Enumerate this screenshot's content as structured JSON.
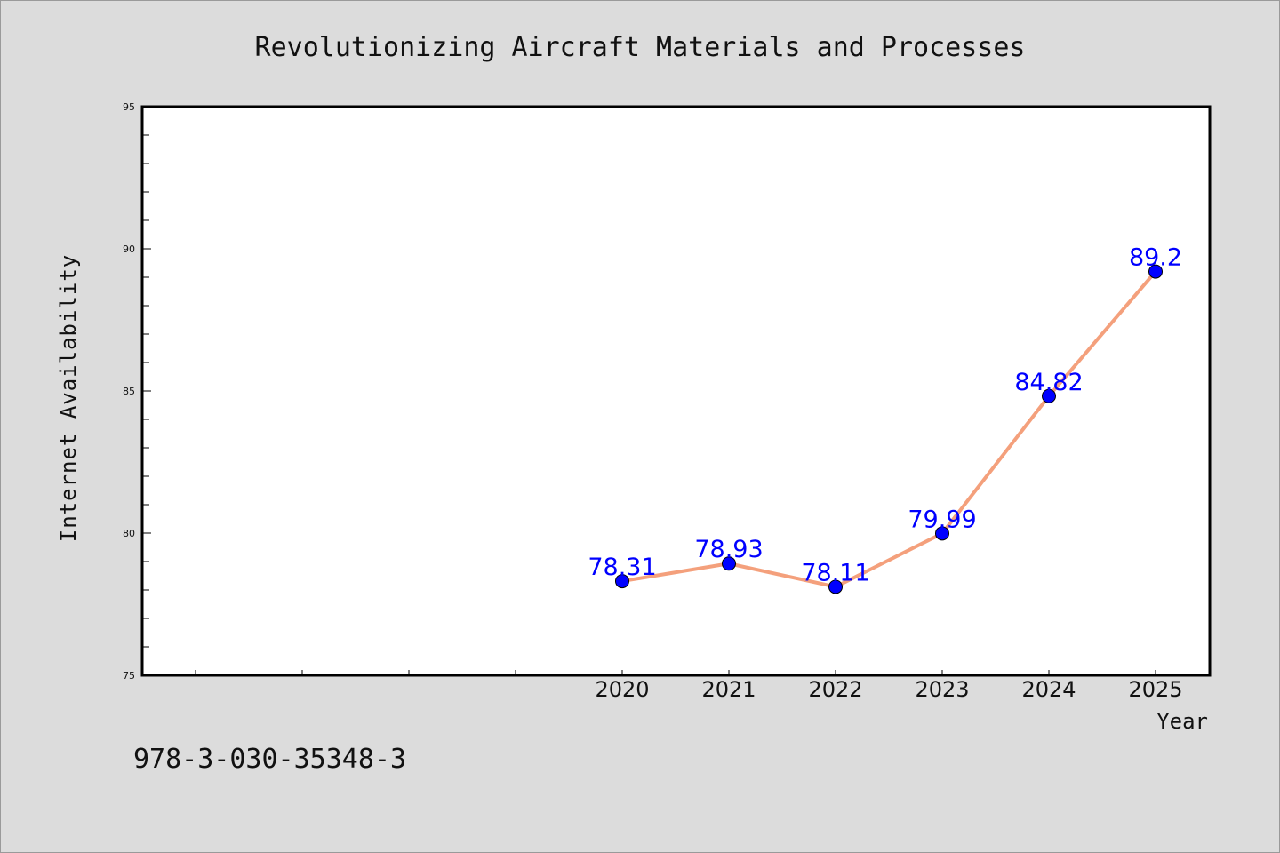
{
  "chart_data": {
    "type": "line",
    "title": "Revolutionizing Aircraft Materials and Processes",
    "xlabel": "Year",
    "ylabel": "Internet Availability",
    "ylim": [
      75,
      95
    ],
    "y_ticks": [
      "75",
      "80",
      "85",
      "90",
      "95"
    ],
    "x": [
      "2020",
      "2021",
      "2022",
      "2023",
      "2024",
      "2025"
    ],
    "series": [
      {
        "values": [
          78.31,
          78.93,
          78.11,
          79.99,
          84.82,
          89.2
        ],
        "labels": [
          "78.31",
          "78.93",
          "78.11",
          "79.99",
          "84.82",
          "89.2"
        ],
        "line_color": "#f4a07c",
        "marker_color": "#0000ff"
      }
    ],
    "grid": false,
    "legend": "none"
  },
  "footer": {
    "isbn": "978-3-030-35348-3"
  },
  "colors": {
    "background": "#dcdcdc",
    "plot_background": "#ffffff",
    "axis": "#000000",
    "line": "#f4a07c",
    "marker": "#0000ff",
    "data_label": "#0000ff"
  }
}
